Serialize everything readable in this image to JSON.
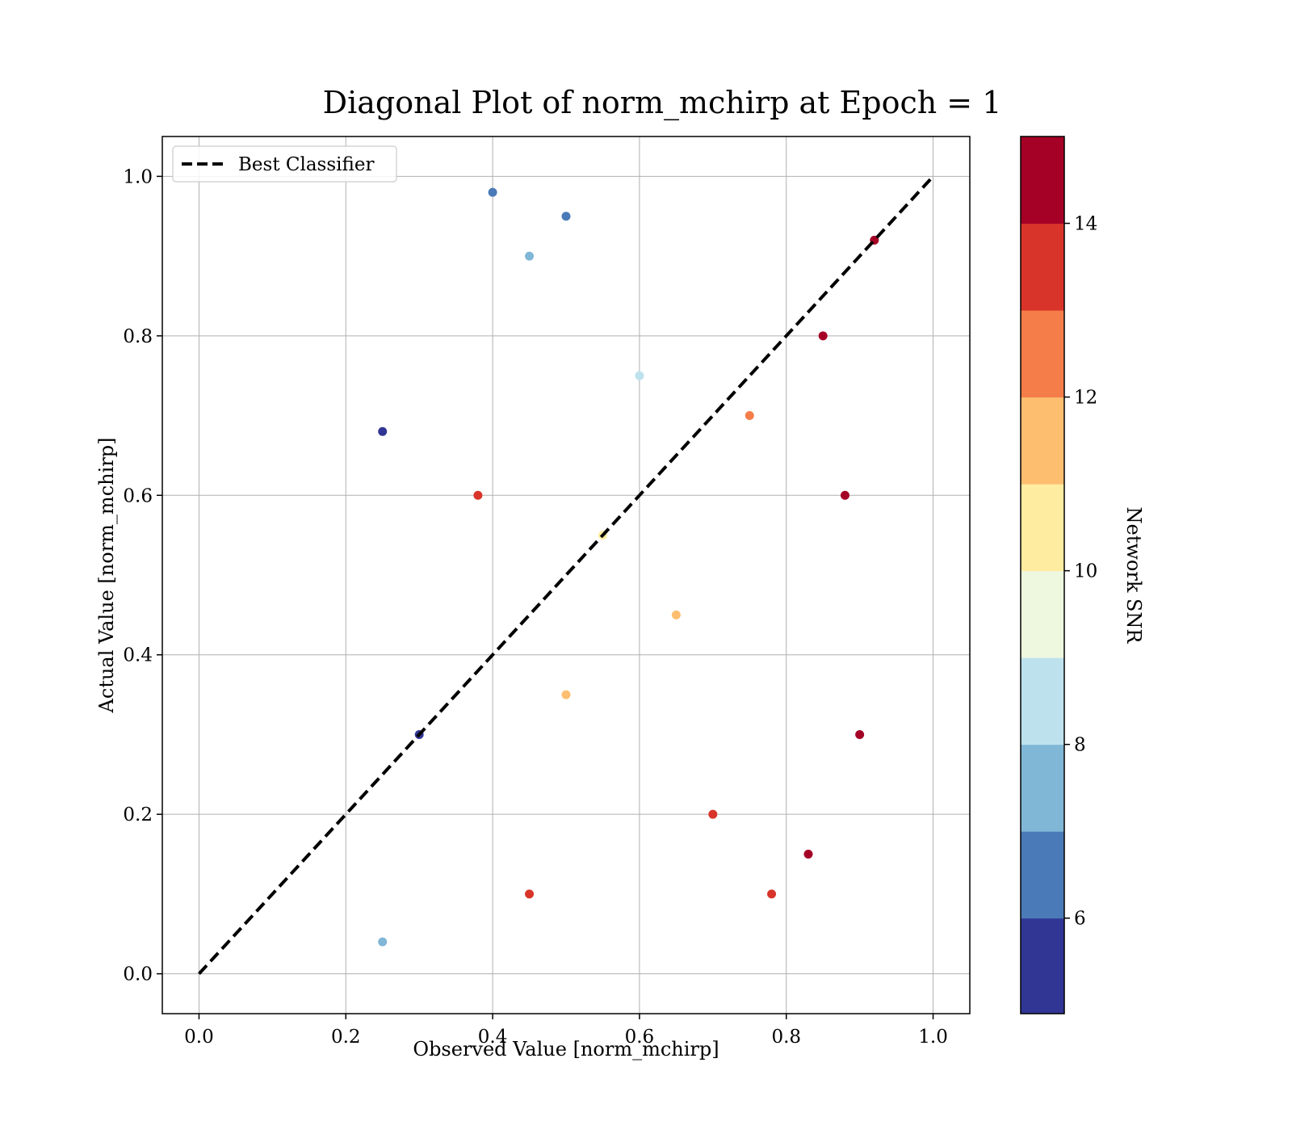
{
  "chart_data": {
    "type": "scatter",
    "title": "Diagonal Plot of norm_mchirp at Epoch = 1",
    "xlabel": "Observed Value [norm_mchirp]",
    "ylabel": "Actual Value [norm_mchirp]",
    "xlim": [
      -0.05,
      1.05
    ],
    "ylim": [
      -0.05,
      1.05
    ],
    "xticks": [
      "0.0",
      "0.2",
      "0.4",
      "0.6",
      "0.8",
      "1.0"
    ],
    "yticks": [
      "0.0",
      "0.2",
      "0.4",
      "0.6",
      "0.8",
      "1.0"
    ],
    "grid": true,
    "legend": {
      "placement": "top-left",
      "entries": [
        {
          "label": "Best Classifier",
          "style": "black dashed line"
        }
      ]
    },
    "reference_line": {
      "name": "Best Classifier",
      "x": [
        0.0,
        1.0
      ],
      "y": [
        0.0,
        1.0
      ],
      "color": "#000000",
      "dash": "dashed"
    },
    "colorbar": {
      "label": "Network SNR",
      "range": [
        4.9,
        15.0
      ],
      "ticks": [
        "6",
        "8",
        "10",
        "12",
        "14"
      ],
      "levels": [
        {
          "from": 4.9,
          "to": 6.0,
          "color": "#313695"
        },
        {
          "from": 6.0,
          "to": 7.0,
          "color": "#4a7ab7"
        },
        {
          "from": 7.0,
          "to": 8.0,
          "color": "#80b6d6"
        },
        {
          "from": 8.0,
          "to": 9.0,
          "color": "#bde2ee"
        },
        {
          "from": 9.0,
          "to": 10.0,
          "color": "#eef8df"
        },
        {
          "from": 10.0,
          "to": 11.0,
          "color": "#feeda1"
        },
        {
          "from": 11.0,
          "to": 12.0,
          "color": "#fdbe70"
        },
        {
          "from": 12.0,
          "to": 13.0,
          "color": "#f57d4a"
        },
        {
          "from": 13.0,
          "to": 14.0,
          "color": "#d93429"
        },
        {
          "from": 14.0,
          "to": 15.0,
          "color": "#a50026"
        }
      ]
    },
    "series": [
      {
        "marker": "circle",
        "color_by": "Network SNR",
        "points": [
          {
            "x": 0.88,
            "y": 0.6,
            "snr": 14.6
          },
          {
            "x": 0.9,
            "y": 0.3,
            "snr": 14.8
          },
          {
            "x": 0.85,
            "y": 0.8,
            "snr": 14.5
          },
          {
            "x": 0.92,
            "y": 0.92,
            "snr": 14.7
          },
          {
            "x": 0.83,
            "y": 0.15,
            "snr": 14.2
          },
          {
            "x": 0.78,
            "y": 0.1,
            "snr": 13.6
          },
          {
            "x": 0.7,
            "y": 0.2,
            "snr": 13.2
          },
          {
            "x": 0.65,
            "y": 0.45,
            "snr": 11.6
          },
          {
            "x": 0.55,
            "y": 0.55,
            "snr": 10.4
          },
          {
            "x": 0.6,
            "y": 0.75,
            "snr": 8.7
          },
          {
            "x": 0.5,
            "y": 0.95,
            "snr": 6.3
          },
          {
            "x": 0.45,
            "y": 0.9,
            "snr": 7.4
          },
          {
            "x": 0.4,
            "y": 0.98,
            "snr": 6.6
          },
          {
            "x": 0.38,
            "y": 0.6,
            "snr": 13.4
          },
          {
            "x": 0.45,
            "y": 0.1,
            "snr": 13.0
          },
          {
            "x": 0.3,
            "y": 0.3,
            "snr": 5.6
          },
          {
            "x": 0.25,
            "y": 0.68,
            "snr": 5.3
          },
          {
            "x": 0.25,
            "y": 0.04,
            "snr": 7.2
          },
          {
            "x": 0.5,
            "y": 0.35,
            "snr": 11.3
          },
          {
            "x": 0.75,
            "y": 0.7,
            "snr": 12.4
          }
        ]
      }
    ]
  }
}
